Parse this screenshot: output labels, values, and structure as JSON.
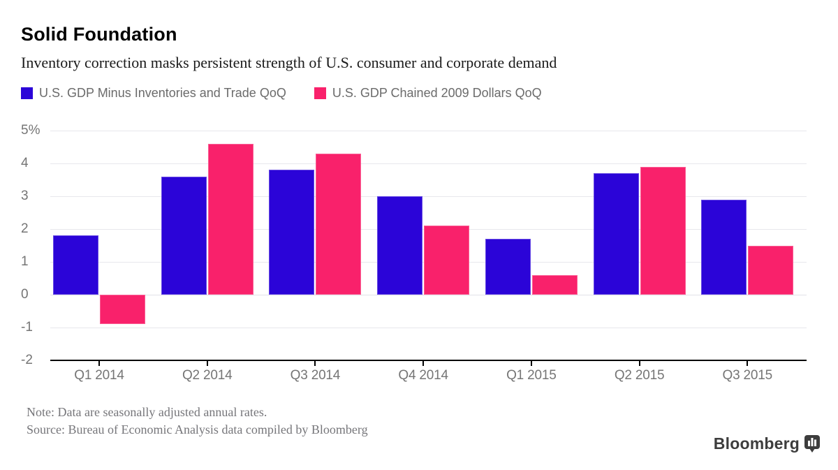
{
  "header": {
    "title": "Solid Foundation",
    "subtitle": "Inventory correction masks persistent strength of U.S. consumer and corporate demand"
  },
  "legend": [
    {
      "label": "U.S. GDP Minus Inventories and Trade QoQ",
      "color": "#2b04d8"
    },
    {
      "label": "U.S. GDP Chained 2009 Dollars QoQ",
      "color": "#f9216b"
    }
  ],
  "chart_data": {
    "type": "bar",
    "categories": [
      "Q1 2014",
      "Q2 2014",
      "Q3 2014",
      "Q4 2014",
      "Q1 2015",
      "Q2 2015",
      "Q3 2015"
    ],
    "series": [
      {
        "name": "U.S. GDP Minus Inventories and Trade QoQ",
        "color": "#2b04d8",
        "values": [
          1.8,
          3.6,
          3.8,
          3.0,
          1.7,
          3.7,
          2.9
        ]
      },
      {
        "name": "U.S. GDP Chained 2009 Dollars QoQ",
        "color": "#f9216b",
        "values": [
          -0.9,
          4.6,
          4.3,
          2.1,
          0.6,
          3.9,
          1.5
        ]
      }
    ],
    "ylabel": "",
    "xlabel": "",
    "ylim": [
      -2,
      5
    ],
    "yticks": [
      5,
      4,
      3,
      2,
      1,
      0,
      -1,
      -2
    ],
    "ytick_labels": [
      "5%",
      "4",
      "3",
      "2",
      "1",
      "0",
      "-1",
      "-2"
    ],
    "grid": true,
    "legend_position": "top",
    "units": "percent, QoQ annualized"
  },
  "footer": {
    "note": "Note: Data are seasonally adjusted annual rates.",
    "source": "Source: Bureau of Economic Analysis data compiled by Bloomberg"
  },
  "branding": {
    "logo_text": "Bloomberg",
    "logo_icon": "bar-chart-bubble-icon"
  }
}
